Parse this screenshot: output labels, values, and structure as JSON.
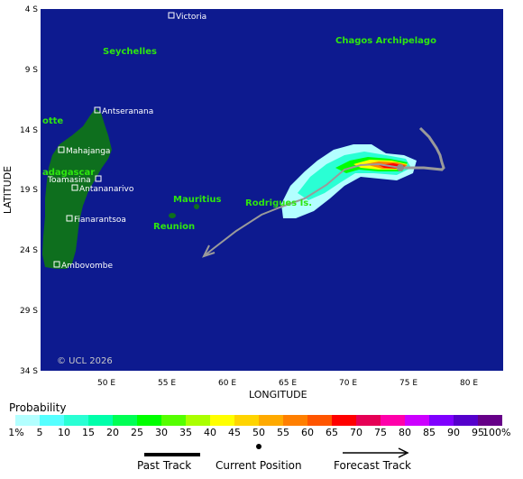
{
  "map": {
    "ocean_color": "#0d1a8f",
    "land_color": "#0e6f1e",
    "place_label_color": "#2ee60f",
    "copyright": "© UCL 2026",
    "x_axis_title": "LONGITUDE",
    "y_axis_title": "LATITUDE",
    "lon_ticks": [
      "50 E",
      "55 E",
      "60 E",
      "65 E",
      "70 E",
      "75 E",
      "80 E"
    ],
    "lat_ticks": [
      "4 S",
      "9 S",
      "14 S",
      "19 S",
      "24 S",
      "29 S",
      "34 S"
    ],
    "places_white": [
      {
        "name": "Victoria"
      },
      {
        "name": "Antseranana"
      },
      {
        "name": "Mahajanga"
      },
      {
        "name": "Toamasina"
      },
      {
        "name": "Antananarivo"
      },
      {
        "name": "Fianarantsoa"
      },
      {
        "name": "Ambovombe"
      }
    ],
    "places_green": [
      {
        "name": "Seychelles"
      },
      {
        "name": "Chagos Archipelago"
      },
      {
        "name": "otte"
      },
      {
        "name": "adagascar"
      },
      {
        "name": "Mauritius"
      },
      {
        "name": "Reunion"
      },
      {
        "name": "Rodrigues Is."
      }
    ]
  },
  "legend": {
    "title": "Probability",
    "labels": [
      "1%",
      "5",
      "10",
      "15",
      "20",
      "25",
      "30",
      "35",
      "40",
      "45",
      "50",
      "55",
      "60",
      "65",
      "70",
      "75",
      "80",
      "85",
      "90",
      "95",
      "100%"
    ],
    "colors": [
      "#b3ffff",
      "#55ffff",
      "#2affd4",
      "#00ffaa",
      "#00ff55",
      "#00ff00",
      "#55ff00",
      "#aaff00",
      "#ffff00",
      "#ffd400",
      "#ffaa00",
      "#ff7f00",
      "#ff5500",
      "#ff0000",
      "#e60055",
      "#ff00aa",
      "#cc00ff",
      "#7f00ff",
      "#5500cc",
      "#660088"
    ],
    "past_track": "Past Track",
    "current_position": "Current Position",
    "forecast_track": "Forecast Track"
  }
}
